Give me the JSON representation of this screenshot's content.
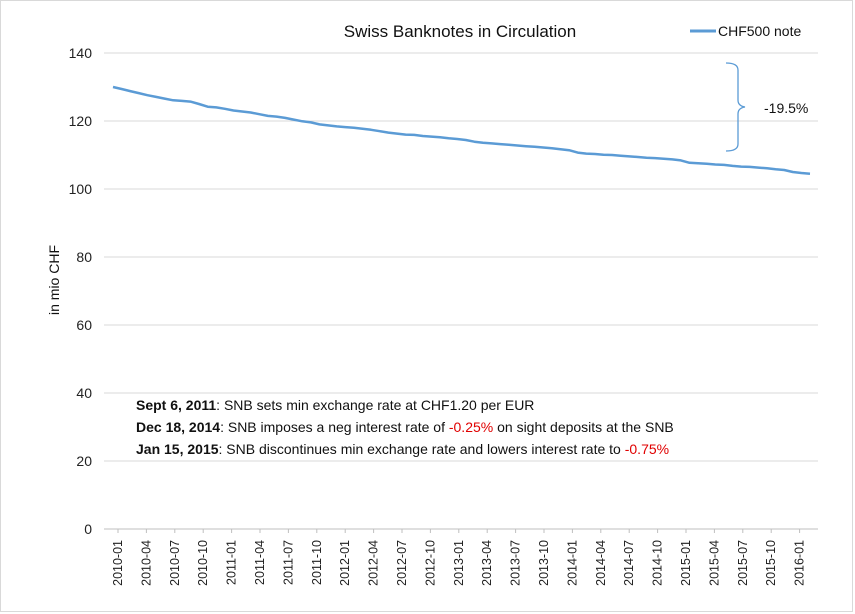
{
  "chart_data": {
    "type": "line",
    "title": "Swiss Banknotes in Circulation",
    "xlabel": "",
    "ylabel": "in mio CHF",
    "ylim": [
      0,
      140
    ],
    "yticks": [
      0,
      20,
      40,
      60,
      80,
      100,
      120,
      140
    ],
    "grid": "horizontal",
    "legend_position": "top-right",
    "x_tick_labels": [
      "2010-01",
      "2010-04",
      "2010-07",
      "2010-10",
      "2011-01",
      "2011-04",
      "2011-07",
      "2011-10",
      "2012-01",
      "2012-04",
      "2012-07",
      "2012-10",
      "2013-01",
      "2013-04",
      "2013-07",
      "2013-10",
      "2014-01",
      "2014-04",
      "2014-07",
      "2014-10",
      "2015-01",
      "2015-04",
      "2015-07",
      "2015-10",
      "2016-01"
    ],
    "series": [
      {
        "name": "CHF500 note",
        "color": "#5b9bd5",
        "values": [
          130.0,
          129.4,
          128.8,
          128.2,
          127.6,
          127.1,
          126.6,
          126.1,
          125.9,
          125.7,
          125.0,
          124.2,
          124.0,
          123.6,
          123.1,
          122.8,
          122.5,
          122.0,
          121.5,
          121.3,
          120.9,
          120.4,
          119.9,
          119.6,
          119.0,
          118.7,
          118.4,
          118.2,
          118.0,
          117.7,
          117.4,
          117.0,
          116.6,
          116.3,
          116.0,
          115.9,
          115.6,
          115.4,
          115.2,
          114.9,
          114.7,
          114.4,
          113.9,
          113.6,
          113.4,
          113.2,
          113.0,
          112.8,
          112.6,
          112.4,
          112.2,
          112.0,
          111.7,
          111.4,
          110.7,
          110.4,
          110.3,
          110.1,
          110.0,
          109.8,
          109.6,
          109.4,
          109.2,
          109.1,
          108.9,
          108.7,
          108.4,
          107.7,
          107.6,
          107.4,
          107.2,
          107.1,
          106.8,
          106.6,
          106.5,
          106.3,
          106.1,
          105.8,
          105.6,
          105.0,
          104.7,
          104.5
        ]
      }
    ],
    "annotation": {
      "label": "-19.5%"
    }
  },
  "notes": [
    {
      "bold": "Sept 6, 2011",
      "text": ": SNB sets min exchange rate at CHF1.20 per EUR"
    },
    {
      "bold": "Dec 18, 2014",
      "text_before": ": SNB imposes a neg interest rate of ",
      "highlight": "-0.25%",
      "text_after": " on sight deposits at the SNB"
    },
    {
      "bold": "Jan 15, 2015",
      "text_before": ": SNB discontinues min exchange rate and lowers interest rate to ",
      "highlight": "-0.75%",
      "text_after": ""
    }
  ],
  "colors": {
    "line": "#5b9bd5",
    "grid": "#d9d9d9",
    "highlight": "#e00000"
  }
}
